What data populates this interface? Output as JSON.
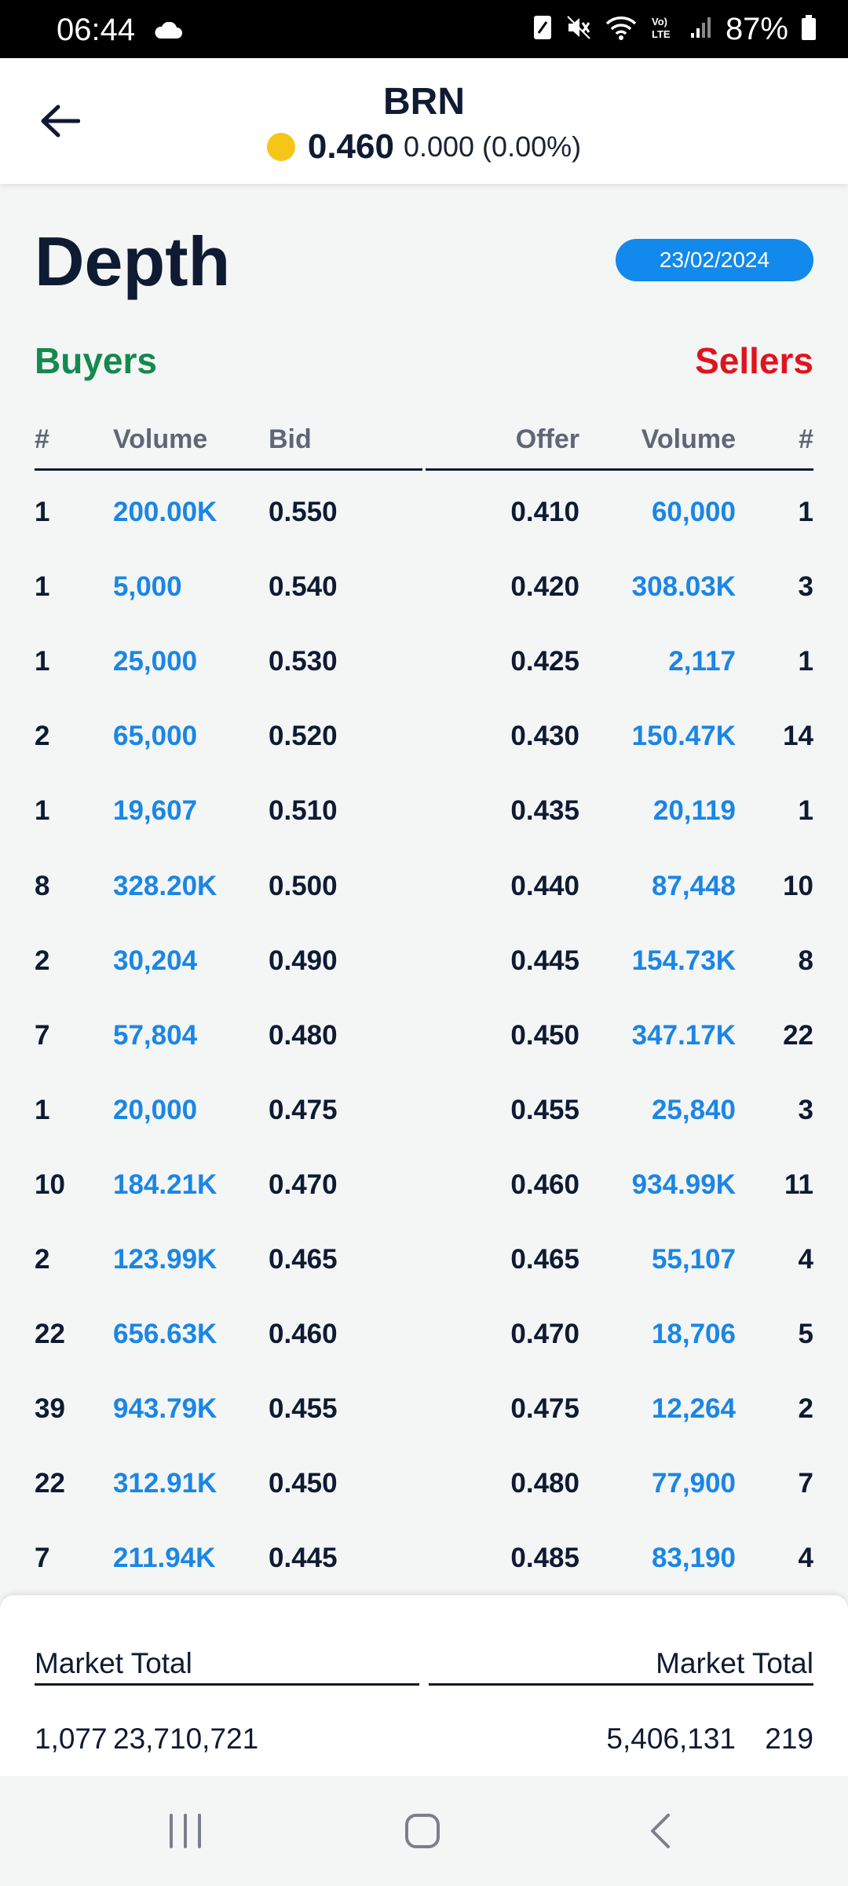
{
  "status_bar": {
    "time": "06:44",
    "battery": "87%",
    "icons": [
      "cloud-icon",
      "nfc-icon",
      "mute-icon",
      "wifi-icon",
      "volte-icon",
      "signal-icon",
      "battery-icon"
    ]
  },
  "header": {
    "title": "BRN",
    "price": "0.460",
    "change": "0.000 (0.00%)"
  },
  "page": {
    "title": "Depth",
    "date": "23/02/2024",
    "buyers_label": "Buyers",
    "sellers_label": "Sellers"
  },
  "columns": {
    "buy_count": "#",
    "buy_volume": "Volume",
    "bid": "Bid",
    "offer": "Offer",
    "sell_volume": "Volume",
    "sell_count": "#"
  },
  "rows": [
    {
      "buy_count": "1",
      "buy_volume": "200.00K",
      "bid": "0.550",
      "offer": "0.410",
      "sell_volume": "60,000",
      "sell_count": "1"
    },
    {
      "buy_count": "1",
      "buy_volume": "5,000",
      "bid": "0.540",
      "offer": "0.420",
      "sell_volume": "308.03K",
      "sell_count": "3"
    },
    {
      "buy_count": "1",
      "buy_volume": "25,000",
      "bid": "0.530",
      "offer": "0.425",
      "sell_volume": "2,117",
      "sell_count": "1"
    },
    {
      "buy_count": "2",
      "buy_volume": "65,000",
      "bid": "0.520",
      "offer": "0.430",
      "sell_volume": "150.47K",
      "sell_count": "14"
    },
    {
      "buy_count": "1",
      "buy_volume": "19,607",
      "bid": "0.510",
      "offer": "0.435",
      "sell_volume": "20,119",
      "sell_count": "1"
    },
    {
      "buy_count": "8",
      "buy_volume": "328.20K",
      "bid": "0.500",
      "offer": "0.440",
      "sell_volume": "87,448",
      "sell_count": "10"
    },
    {
      "buy_count": "2",
      "buy_volume": "30,204",
      "bid": "0.490",
      "offer": "0.445",
      "sell_volume": "154.73K",
      "sell_count": "8"
    },
    {
      "buy_count": "7",
      "buy_volume": "57,804",
      "bid": "0.480",
      "offer": "0.450",
      "sell_volume": "347.17K",
      "sell_count": "22"
    },
    {
      "buy_count": "1",
      "buy_volume": "20,000",
      "bid": "0.475",
      "offer": "0.455",
      "sell_volume": "25,840",
      "sell_count": "3"
    },
    {
      "buy_count": "10",
      "buy_volume": "184.21K",
      "bid": "0.470",
      "offer": "0.460",
      "sell_volume": "934.99K",
      "sell_count": "11"
    },
    {
      "buy_count": "2",
      "buy_volume": "123.99K",
      "bid": "0.465",
      "offer": "0.465",
      "sell_volume": "55,107",
      "sell_count": "4"
    },
    {
      "buy_count": "22",
      "buy_volume": "656.63K",
      "bid": "0.460",
      "offer": "0.470",
      "sell_volume": "18,706",
      "sell_count": "5"
    },
    {
      "buy_count": "39",
      "buy_volume": "943.79K",
      "bid": "0.455",
      "offer": "0.475",
      "sell_volume": "12,264",
      "sell_count": "2"
    },
    {
      "buy_count": "22",
      "buy_volume": "312.91K",
      "bid": "0.450",
      "offer": "0.480",
      "sell_volume": "77,900",
      "sell_count": "7"
    },
    {
      "buy_count": "7",
      "buy_volume": "211.94K",
      "bid": "0.445",
      "offer": "0.485",
      "sell_volume": "83,190",
      "sell_count": "4"
    }
  ],
  "totals": {
    "buy_label": "Market Total",
    "sell_label": "Market Total",
    "buy_count": "1,077",
    "buy_volume": "23,710,721",
    "sell_volume": "5,406,131",
    "sell_count": "219"
  },
  "colors": {
    "buyers": "#138a4e",
    "sellers": "#e0141e",
    "volume": "#1a86e6",
    "date_pill": "#1289ec",
    "coin": "#f5c518"
  }
}
